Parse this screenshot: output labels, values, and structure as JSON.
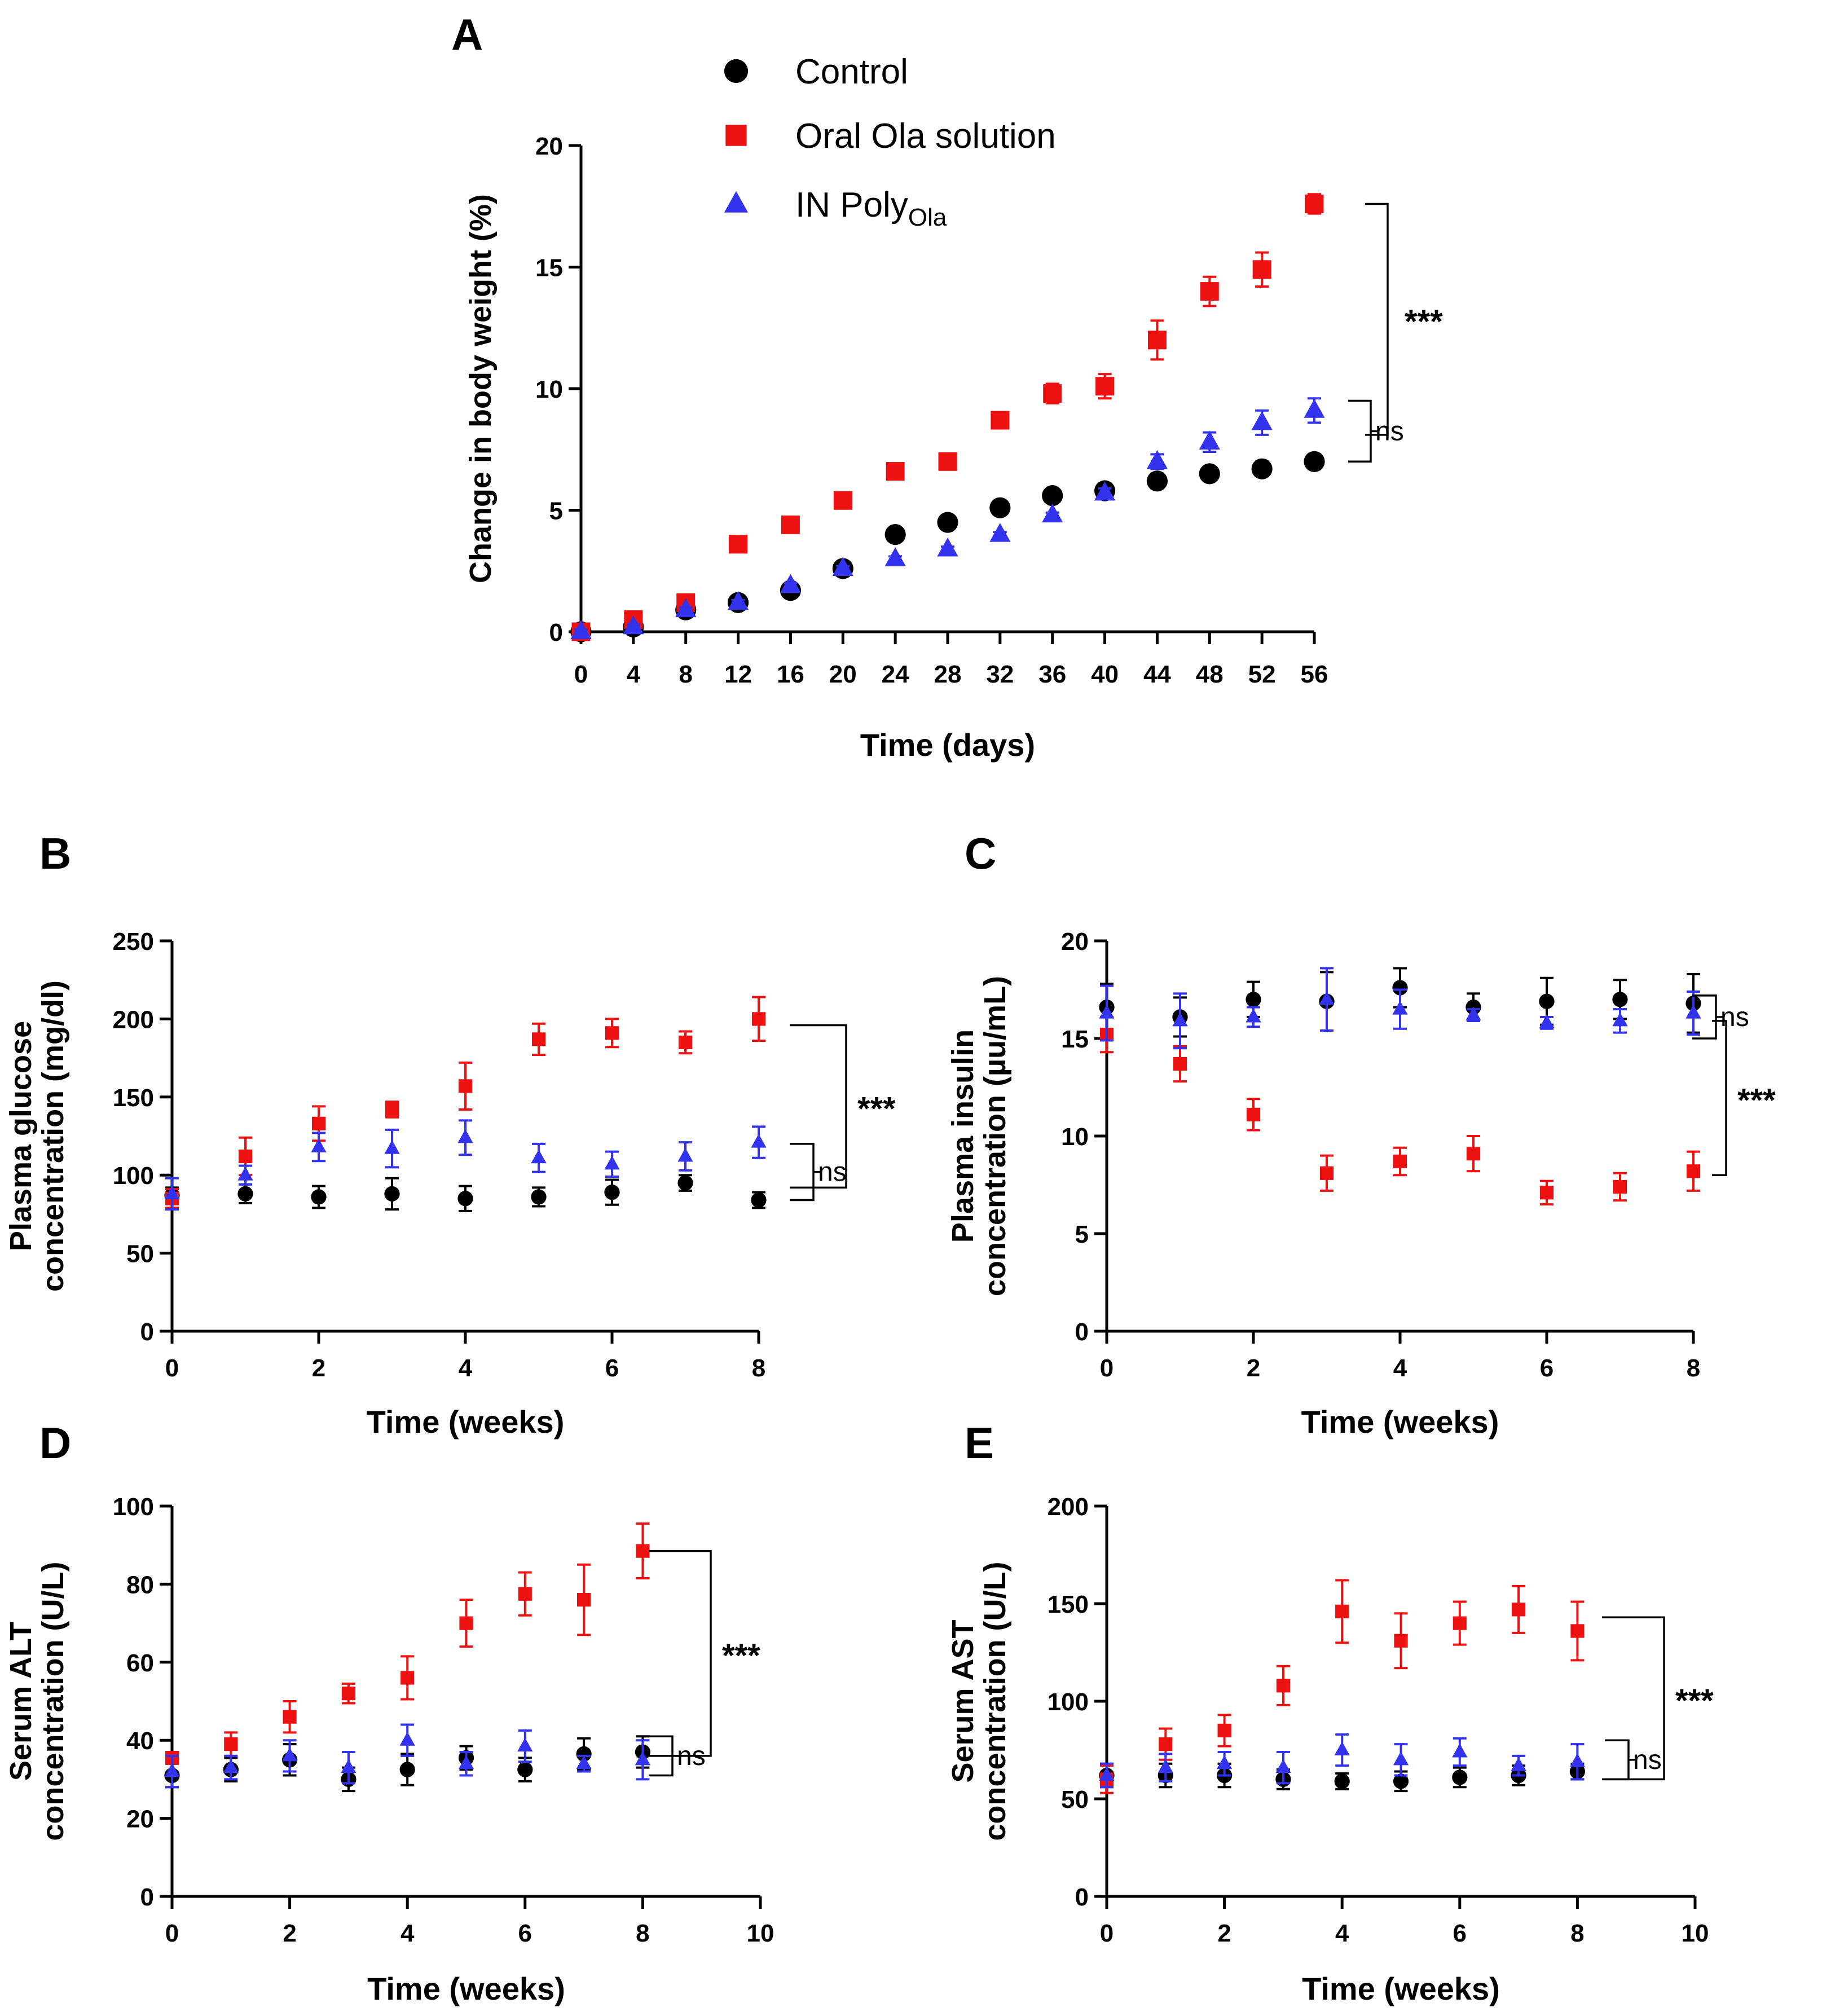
{
  "colors": {
    "Control": "#000000",
    "Oral Ola solution": "#ee1111",
    "IN PolyOla": "#3333ee"
  },
  "legend": [
    {
      "name": "Control",
      "label": "Control",
      "marker": "circle"
    },
    {
      "name": "Oral Ola solution",
      "label": "Oral Ola solution",
      "marker": "square"
    },
    {
      "name": "IN PolyOla",
      "label": "IN Poly",
      "sub": "Ola",
      "marker": "triangle"
    }
  ],
  "chart_data": [
    {
      "panel": "A",
      "type": "scatter",
      "xlabel": "Time (days)",
      "ylabel": "Change in body weight (%)",
      "xlim": [
        0,
        56
      ],
      "ylim": [
        0,
        20
      ],
      "xticks": [
        0,
        4,
        8,
        12,
        16,
        20,
        24,
        28,
        32,
        36,
        40,
        44,
        48,
        52,
        56
      ],
      "yticks": [
        0,
        5,
        10,
        15,
        20
      ],
      "x": [
        0,
        4,
        8,
        12,
        16,
        20,
        24,
        28,
        32,
        36,
        40,
        44,
        48,
        52,
        56
      ],
      "series": [
        {
          "name": "Control",
          "values": [
            0,
            0.2,
            0.9,
            1.2,
            1.7,
            2.6,
            4.0,
            4.5,
            5.1,
            5.6,
            5.8,
            6.2,
            6.5,
            6.7,
            7.0
          ],
          "errors": [
            0.1,
            0.1,
            0.1,
            0.1,
            0.1,
            0.1,
            0.1,
            0.1,
            0.1,
            0.1,
            0.3,
            0.3,
            0.1,
            0.3,
            0.3
          ]
        },
        {
          "name": "Oral Ola solution",
          "values": [
            0,
            0.5,
            1.2,
            3.6,
            4.4,
            5.4,
            6.6,
            7.0,
            8.7,
            9.8,
            10.1,
            12.0,
            14.0,
            14.9,
            17.6
          ],
          "errors": [
            0.1,
            0.1,
            0.1,
            0.1,
            0.1,
            0.1,
            0.1,
            0.1,
            0.3,
            0.4,
            0.5,
            0.8,
            0.6,
            0.7,
            0.4
          ]
        },
        {
          "name": "IN PolyOla",
          "values": [
            0,
            0.2,
            0.9,
            1.2,
            1.9,
            2.6,
            3.0,
            3.4,
            4.0,
            4.8,
            5.7,
            7.0,
            7.8,
            8.6,
            9.1
          ],
          "errors": [
            0.1,
            0.1,
            0.1,
            0.1,
            0.1,
            0.1,
            0.1,
            0.1,
            0.1,
            0.1,
            0.2,
            0.3,
            0.4,
            0.5,
            0.5
          ]
        }
      ],
      "annotations": [
        {
          "label": "***",
          "kind": "long",
          "y1": 17.6,
          "y2": 8.1
        },
        {
          "label": "ns",
          "kind": "short",
          "y1": 9.5,
          "y2": 7.0
        }
      ]
    },
    {
      "panel": "B",
      "type": "scatter",
      "xlabel": "Time (weeks)",
      "ylabel": [
        "Plasma glucose",
        "concentration (mg/dl)"
      ],
      "xlim": [
        0,
        8
      ],
      "ylim": [
        0,
        250
      ],
      "xticks": [
        0,
        2,
        4,
        6,
        8
      ],
      "yticks": [
        0,
        50,
        100,
        150,
        200,
        250
      ],
      "x": [
        0,
        1,
        2,
        3,
        4,
        5,
        6,
        7,
        8
      ],
      "series": [
        {
          "name": "Control",
          "values": [
            87,
            88,
            86,
            88,
            85,
            86,
            89,
            95,
            84
          ],
          "errors": [
            5,
            6,
            7,
            10,
            8,
            6,
            8,
            5,
            5
          ]
        },
        {
          "name": "Oral Ola solution",
          "values": [
            85,
            112,
            133,
            142,
            157,
            187,
            191,
            185,
            200
          ],
          "errors": [
            6,
            12,
            11,
            5,
            15,
            10,
            9,
            7,
            14
          ]
        },
        {
          "name": "IN PolyOla",
          "values": [
            88,
            100,
            118,
            117,
            124,
            111,
            107,
            112,
            121
          ],
          "errors": [
            10,
            6,
            9,
            12,
            11,
            9,
            8,
            9,
            10
          ]
        }
      ],
      "annotations": [
        {
          "label": "***",
          "kind": "long",
          "y1": 196,
          "y2": 92
        },
        {
          "label": "ns",
          "kind": "short",
          "y1": 120,
          "y2": 84
        }
      ]
    },
    {
      "panel": "C",
      "type": "scatter",
      "xlabel": "Time (weeks)",
      "ylabel": [
        "Plasma insulin",
        "concentration (µu/mL)"
      ],
      "xlim": [
        0,
        8
      ],
      "ylim": [
        0,
        20
      ],
      "xticks": [
        0,
        2,
        4,
        6,
        8
      ],
      "yticks": [
        0,
        5,
        10,
        15,
        20
      ],
      "x": [
        0,
        1,
        2,
        3,
        4,
        5,
        6,
        7,
        8
      ],
      "series": [
        {
          "name": "Control",
          "values": [
            16.6,
            16.1,
            17.0,
            16.9,
            17.6,
            16.6,
            16.9,
            17.0,
            16.8
          ],
          "errors": [
            1.2,
            1.0,
            0.9,
            1.5,
            1.0,
            0.7,
            1.2,
            1.0,
            1.5
          ]
        },
        {
          "name": "Oral Ola solution",
          "values": [
            15.2,
            13.7,
            11.1,
            8.1,
            8.7,
            9.1,
            7.1,
            7.4,
            8.2
          ],
          "errors": [
            0.9,
            0.9,
            0.8,
            0.9,
            0.7,
            0.9,
            0.6,
            0.7,
            1.0
          ]
        },
        {
          "name": "IN PolyOla",
          "values": [
            16.3,
            15.9,
            16.1,
            17.0,
            16.5,
            16.2,
            15.8,
            15.9,
            16.3
          ],
          "errors": [
            1.4,
            1.4,
            0.5,
            1.6,
            1.0,
            0.3,
            0.3,
            0.6,
            1.1
          ]
        }
      ],
      "annotations": [
        {
          "label": "ns",
          "kind": "short",
          "y1": 17.2,
          "y2": 15.0
        },
        {
          "label": "***",
          "kind": "long",
          "y1": 15.9,
          "y2": 8.0
        }
      ]
    },
    {
      "panel": "D",
      "type": "scatter",
      "xlabel": "Time (weeks)",
      "ylabel": [
        "Serum ALT",
        "concentration (U/L)"
      ],
      "xlim": [
        0,
        10
      ],
      "ylim": [
        0,
        100
      ],
      "xticks": [
        0,
        2,
        4,
        6,
        8,
        10
      ],
      "yticks": [
        0,
        20,
        40,
        60,
        80,
        100
      ],
      "x": [
        0,
        1,
        2,
        3,
        4,
        5,
        6,
        7,
        8
      ],
      "series": [
        {
          "name": "Control",
          "values": [
            31,
            32.5,
            35,
            30,
            32.5,
            35.5,
            32.5,
            36.5,
            37
          ],
          "errors": [
            3,
            3,
            4,
            3,
            4,
            3,
            3,
            4,
            4
          ]
        },
        {
          "name": "Oral Ola solution",
          "values": [
            35.5,
            39,
            46,
            52,
            56,
            70,
            77.5,
            76,
            88.5
          ],
          "errors": [
            1.5,
            3,
            4,
            2.5,
            5.5,
            6,
            5.5,
            9,
            7
          ]
        },
        {
          "name": "IN PolyOla",
          "values": [
            32,
            33,
            36,
            33,
            40,
            34,
            38.5,
            34,
            35
          ],
          "errors": [
            4,
            3,
            4,
            4,
            4,
            3,
            4,
            2,
            5
          ]
        }
      ],
      "annotations": [
        {
          "label": "***",
          "kind": "long",
          "y1": 88.5,
          "y2": 36
        },
        {
          "label": "ns",
          "kind": "short",
          "y1": 41,
          "y2": 31
        }
      ]
    },
    {
      "panel": "E",
      "type": "scatter",
      "xlabel": "Time (weeks)",
      "ylabel": [
        "Serum AST",
        "concentration (U/L)"
      ],
      "xlim": [
        0,
        10
      ],
      "ylim": [
        0,
        200
      ],
      "xticks": [
        0,
        2,
        4,
        6,
        8,
        10
      ],
      "yticks": [
        0,
        50,
        100,
        150,
        200
      ],
      "x": [
        0,
        1,
        2,
        3,
        4,
        5,
        6,
        7,
        8
      ],
      "series": [
        {
          "name": "Control",
          "values": [
            62,
            62,
            62,
            60,
            59,
            59,
            61,
            62,
            64
          ],
          "errors": [
            6,
            6,
            6,
            5,
            4,
            5,
            5,
            5,
            4
          ]
        },
        {
          "name": "Oral Ola solution",
          "values": [
            60,
            78,
            85,
            108,
            146,
            131,
            140,
            147,
            136
          ],
          "errors": [
            7,
            8,
            8,
            10,
            16,
            14,
            11,
            12,
            15
          ]
        },
        {
          "name": "IN PolyOla",
          "values": [
            62,
            66,
            68,
            66,
            75,
            70,
            74,
            67,
            69
          ],
          "errors": [
            6,
            7,
            6,
            8,
            8,
            8,
            7,
            5,
            9
          ]
        }
      ],
      "annotations": [
        {
          "label": "***",
          "kind": "long",
          "y1": 143,
          "y2": 60
        },
        {
          "label": "ns",
          "kind": "short",
          "y1": 80,
          "y2": 60
        }
      ]
    }
  ]
}
